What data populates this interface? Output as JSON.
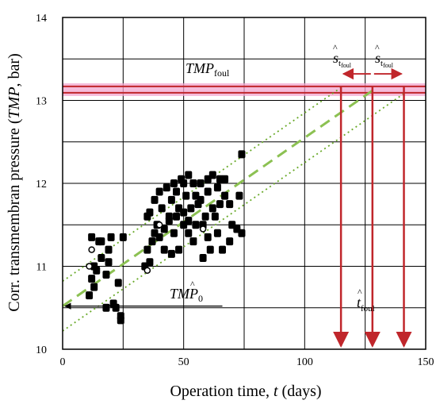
{
  "chart_data": {
    "type": "scatter",
    "xlabel": {
      "text": "Operation time, ",
      "var": "t",
      "unit": " (days)"
    },
    "ylabel": {
      "text": "Corr. transmembran pressure (",
      "var": "TMP",
      "unit": ", bar)"
    },
    "xlim": [
      0,
      150
    ],
    "ylim": [
      10,
      14
    ],
    "x_ticks": [
      "0",
      "50",
      "100",
      "150"
    ],
    "y_ticks": [
      "10",
      "11",
      "12",
      "13",
      "14"
    ],
    "grid": true,
    "annotations": {
      "tmp_foul": {
        "main": "TMP",
        "sub": "foul"
      },
      "tmp0": {
        "main": "TM",
        "hat": "P",
        "sub": "0"
      },
      "t_foul": {
        "hat": "t",
        "sub": "foul"
      },
      "s_left": {
        "hat": "s",
        "sub": "t",
        "subsub": "foul"
      },
      "s_right": {
        "hat": "s",
        "sub": "t",
        "subsub": "foul"
      }
    },
    "foul_threshold": 13.13,
    "tmp0_value": 10.52,
    "fit_line": {
      "intercept": 10.52,
      "slope": 0.0203
    },
    "confidence_offset": 0.3,
    "t_foul": 128,
    "t_foul_lower": 115,
    "t_foul_upper": 141,
    "points": [
      [
        11,
        10.65
      ],
      [
        12,
        10.85
      ],
      [
        14,
        10.95
      ],
      [
        13,
        10.75
      ],
      [
        15,
        11.3
      ],
      [
        16,
        11.1
      ],
      [
        18,
        10.5
      ],
      [
        18,
        10.9
      ],
      [
        19,
        11.2
      ],
      [
        20,
        11.35
      ],
      [
        21,
        10.55
      ],
      [
        22,
        10.5
      ],
      [
        23,
        10.8
      ],
      [
        24,
        10.4
      ],
      [
        24,
        10.35
      ],
      [
        25,
        11.35
      ],
      [
        12,
        11.35
      ],
      [
        16,
        11.3
      ],
      [
        13,
        11.0
      ],
      [
        19,
        11.05
      ],
      [
        34,
        11.0
      ],
      [
        35,
        11.2
      ],
      [
        35,
        11.6
      ],
      [
        36,
        11.65
      ],
      [
        37,
        11.3
      ],
      [
        38,
        11.8
      ],
      [
        38,
        11.4
      ],
      [
        39,
        11.5
      ],
      [
        40,
        11.9
      ],
      [
        41,
        11.7
      ],
      [
        42,
        11.45
      ],
      [
        42,
        11.2
      ],
      [
        43,
        11.95
      ],
      [
        44,
        11.6
      ],
      [
        45,
        11.8
      ],
      [
        46,
        11.4
      ],
      [
        46,
        12.0
      ],
      [
        47,
        11.6
      ],
      [
        48,
        11.2
      ],
      [
        48,
        11.7
      ],
      [
        49,
        12.05
      ],
      [
        50,
        11.5
      ],
      [
        50,
        12.0
      ],
      [
        51,
        11.85
      ],
      [
        52,
        12.1
      ],
      [
        52,
        11.55
      ],
      [
        53,
        11.7
      ],
      [
        54,
        11.3
      ],
      [
        54,
        12.0
      ],
      [
        55,
        11.85
      ],
      [
        56,
        11.75
      ],
      [
        57,
        12.0
      ],
      [
        58,
        11.5
      ],
      [
        58,
        11.1
      ],
      [
        59,
        11.6
      ],
      [
        60,
        11.35
      ],
      [
        60,
        11.9
      ],
      [
        61,
        11.2
      ],
      [
        62,
        11.7
      ],
      [
        62,
        12.1
      ],
      [
        63,
        11.6
      ],
      [
        64,
        11.4
      ],
      [
        64,
        11.95
      ],
      [
        65,
        11.75
      ],
      [
        66,
        11.2
      ],
      [
        67,
        11.85
      ],
      [
        67,
        12.05
      ],
      [
        69,
        11.3
      ],
      [
        70,
        11.5
      ],
      [
        72,
        11.45
      ],
      [
        74,
        12.35
      ],
      [
        73,
        11.85
      ],
      [
        74,
        11.4
      ],
      [
        65,
        12.05
      ],
      [
        57,
        11.8
      ],
      [
        44,
        11.55
      ],
      [
        36,
        11.05
      ],
      [
        47,
        11.9
      ],
      [
        52,
        11.4
      ],
      [
        69,
        11.75
      ],
      [
        40,
        11.35
      ],
      [
        45,
        11.15
      ],
      [
        50,
        11.65
      ],
      [
        55,
        11.5
      ],
      [
        60,
        12.05
      ]
    ],
    "hollow_points": [
      [
        11,
        11.0
      ],
      [
        40,
        11.5
      ],
      [
        35,
        10.95
      ],
      [
        58,
        11.45
      ],
      [
        12,
        11.2
      ]
    ]
  }
}
